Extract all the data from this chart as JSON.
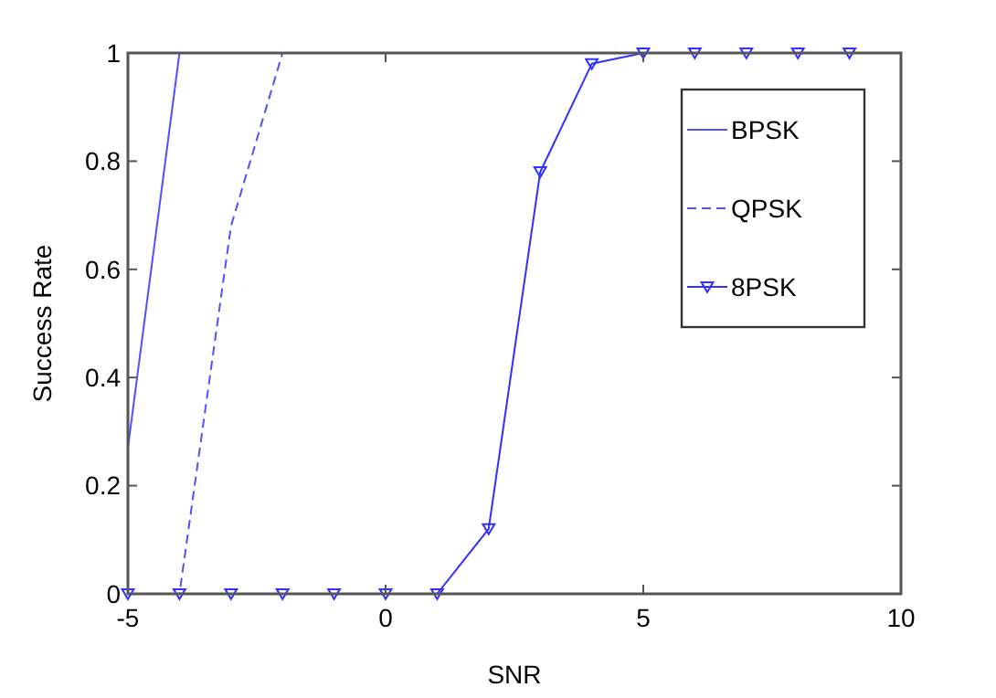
{
  "chart_data": {
    "type": "line",
    "xlabel": "SNR",
    "ylabel": "Success Rate",
    "x": [
      -5,
      -4,
      -3,
      -2,
      -1,
      0,
      1,
      2,
      3,
      4,
      5,
      6,
      7,
      8,
      9
    ],
    "series": [
      {
        "name": "BPSK",
        "color": "#5050ff",
        "line_style": "solid",
        "marker": "none",
        "values": [
          0.27,
          1,
          null,
          null,
          null,
          null,
          null,
          null,
          null,
          null,
          null,
          null,
          null,
          null,
          null
        ]
      },
      {
        "name": "QPSK",
        "color": "#5050ff",
        "line_style": "dashed",
        "marker": "none",
        "values": [
          0,
          0,
          0.68,
          1,
          null,
          null,
          null,
          null,
          null,
          null,
          null,
          null,
          null,
          null,
          null
        ]
      },
      {
        "name": "8PSK",
        "color": "#3030ff",
        "line_style": "solid",
        "marker": "triangle",
        "values": [
          0,
          0,
          0,
          0,
          0,
          0,
          0,
          0.12,
          0.78,
          0.98,
          1,
          1,
          1,
          1,
          1
        ]
      }
    ],
    "xlim": [
      -5,
      10
    ],
    "xticks": [
      -5,
      0,
      5,
      10
    ],
    "ylim": [
      0,
      1
    ],
    "yticks": [
      0,
      {
        "value": 0.2,
        "label": "0.2"
      },
      {
        "value": 0.4,
        "label": "0.4"
      },
      {
        "value": 0.6,
        "label": "0.6"
      },
      {
        "value": 0.8,
        "label": "0.8"
      },
      1
    ],
    "grid": false,
    "legend": "top right"
  }
}
